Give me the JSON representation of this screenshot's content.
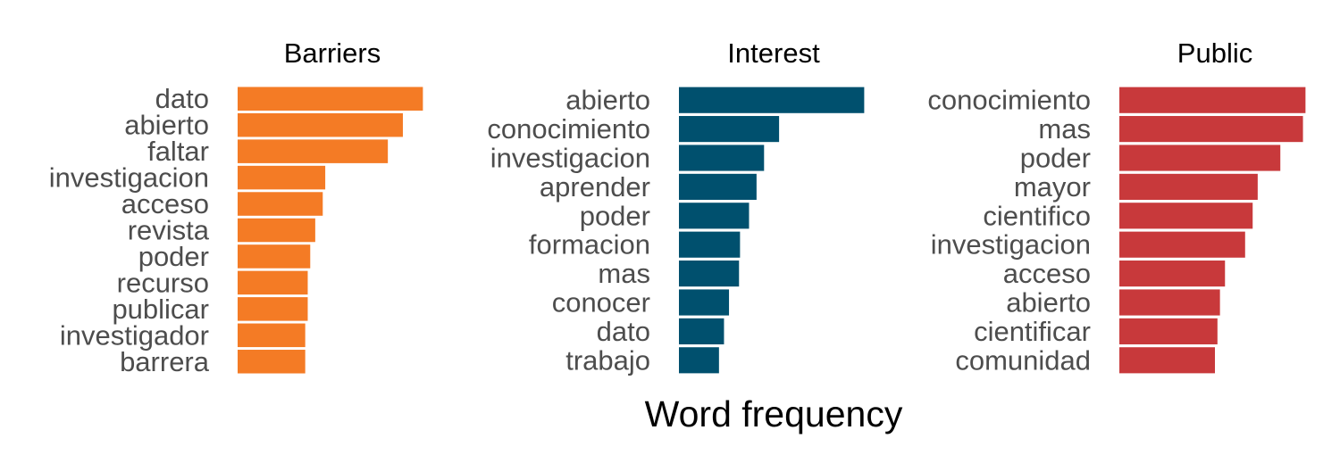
{
  "chart_data": [
    {
      "type": "bar",
      "orientation": "horizontal",
      "title": "Barriers",
      "color": "#f47b25",
      "categories": [
        "dato",
        "abierto",
        "faltar",
        "investigacion",
        "acceso",
        "revista",
        "poder",
        "recurso",
        "publicar",
        "investigador",
        "barrera"
      ],
      "values": [
        37,
        33,
        30,
        17.5,
        17,
        15.5,
        14.5,
        14,
        14,
        13.5,
        13.5
      ],
      "xlim": [
        0,
        38
      ],
      "grid": false
    },
    {
      "type": "bar",
      "orientation": "horizontal",
      "title": "Interest",
      "color": "#00506e",
      "categories": [
        "abierto",
        "conocimiento",
        "investigacion",
        "aprender",
        "poder",
        "formacion",
        "mas",
        "conocer",
        "dato",
        "trabajo"
      ],
      "values": [
        37,
        20,
        17,
        15.5,
        14,
        12.2,
        12,
        10,
        9,
        8
      ],
      "xlim": [
        0,
        38
      ],
      "grid": false
    },
    {
      "type": "bar",
      "orientation": "horizontal",
      "title": "Public",
      "color": "#c8393b",
      "categories": [
        "conocimiento",
        "mas",
        "poder",
        "mayor",
        "cientifico",
        "investigacion",
        "acceso",
        "abierto",
        "cientificar",
        "comunidad"
      ],
      "values": [
        37,
        36.5,
        32,
        27.5,
        26.5,
        25,
        21,
        20,
        19.5,
        19
      ],
      "xlim": [
        0,
        38
      ],
      "grid": false
    }
  ],
  "xlabel": "Word frequency"
}
